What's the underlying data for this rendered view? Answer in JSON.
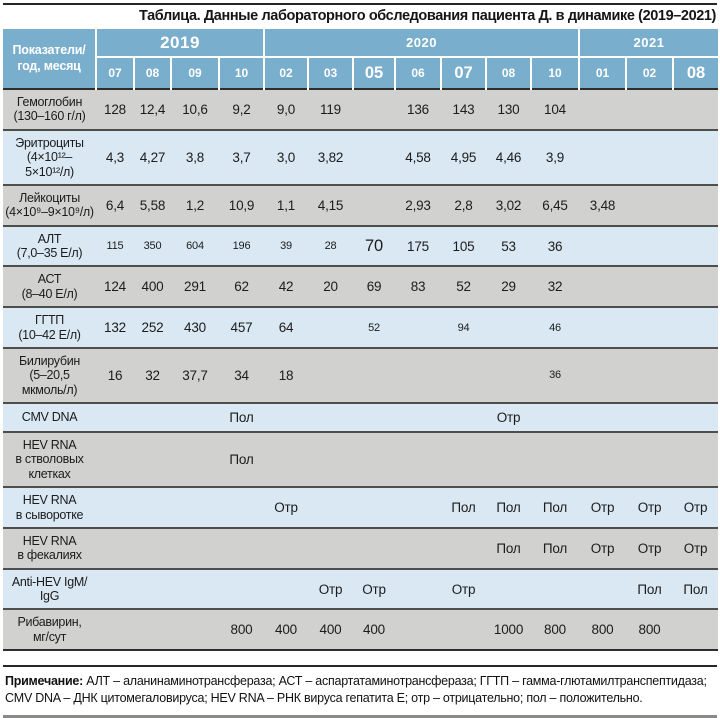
{
  "title": "Таблица. Данные лабораторного обследования пациента Д. в динамике (2019–2021)",
  "colors": {
    "header_blue": "#7aaecd",
    "row_gray": "#d1d1cf",
    "row_blue": "#d9e8f3",
    "header_text": "#ffffff",
    "body_text": "#1c1c1c"
  },
  "header": {
    "row_label": "Показатели/\nгод, месяц",
    "year_groups": [
      {
        "year": "2019",
        "emph": true,
        "months": [
          {
            "m": "07"
          },
          {
            "m": "08"
          },
          {
            "m": "09"
          },
          {
            "m": "10"
          }
        ]
      },
      {
        "year": "2020",
        "emph": false,
        "months": [
          {
            "m": "02"
          },
          {
            "m": "03"
          },
          {
            "m": "05",
            "emph": true
          },
          {
            "m": "06"
          },
          {
            "m": "07",
            "emph": true
          },
          {
            "m": "08"
          },
          {
            "m": "10"
          }
        ]
      },
      {
        "year": "2021",
        "emph": false,
        "months": [
          {
            "m": "01"
          },
          {
            "m": "02"
          },
          {
            "m": "08",
            "emph": true
          }
        ]
      }
    ]
  },
  "rows": [
    {
      "label": "Гемоглобин\n(130–160 г/л)",
      "values": [
        "128",
        "12,4",
        "10,6",
        "9,2",
        "9,0",
        "119",
        "",
        "136",
        "143",
        "130",
        "104",
        "",
        "",
        ""
      ]
    },
    {
      "label": "Эритроциты\n(4×10¹²–\n5×10¹²/л)",
      "values": [
        "4,3",
        "4,27",
        "3,8",
        "3,7",
        "3,0",
        "3,82",
        "",
        "4,58",
        "4,95",
        "4,46",
        "3,9",
        "",
        "",
        ""
      ]
    },
    {
      "label": "Лейкоциты\n(4×10⁹–9×10⁹/л)",
      "values": [
        "6,4",
        "5,58",
        "1,2",
        "10,9",
        "1,1",
        "4,15",
        "",
        "2,93",
        "2,8",
        "3,02",
        "6,45",
        "3,48",
        "",
        ""
      ]
    },
    {
      "label": "АЛТ\n(7,0–35 Е/л)",
      "values": [
        {
          "v": "115",
          "size": "sm"
        },
        {
          "v": "350",
          "size": "sm"
        },
        {
          "v": "604",
          "size": "sm"
        },
        {
          "v": "196",
          "size": "sm"
        },
        {
          "v": "39",
          "size": "sm"
        },
        {
          "v": "28",
          "size": "sm"
        },
        {
          "v": "70",
          "size": "lg"
        },
        "175",
        "105",
        "53",
        "36",
        "",
        "",
        ""
      ]
    },
    {
      "label": "АСТ\n(8–40 Е/л)",
      "values": [
        "124",
        "400",
        "291",
        "62",
        "42",
        "20",
        "69",
        "83",
        "52",
        "29",
        "32",
        "",
        "",
        ""
      ]
    },
    {
      "label": "ГГТП\n(10–42 Е/л)",
      "values": [
        "132",
        "252",
        "430",
        "457",
        "64",
        "",
        {
          "v": "52",
          "size": "sm"
        },
        "",
        {
          "v": "94",
          "size": "sm"
        },
        "",
        {
          "v": "46",
          "size": "sm"
        },
        "",
        "",
        ""
      ]
    },
    {
      "label": "Билирубин\n(5–20,5\nмкмоль/л)",
      "values": [
        "16",
        "32",
        "37,7",
        "34",
        "18",
        "",
        "",
        "",
        "",
        "",
        {
          "v": "36",
          "size": "sm"
        },
        "",
        "",
        ""
      ]
    },
    {
      "label": "CMV DNA",
      "values": [
        "",
        "",
        "",
        "Пол",
        "",
        "",
        "",
        "",
        "",
        "Отр",
        "",
        "",
        "",
        ""
      ]
    },
    {
      "label": "HEV RNA\nв стволовых\nклетках",
      "values": [
        "",
        "",
        "",
        "Пол",
        "",
        "",
        "",
        "",
        "",
        "",
        "",
        "",
        "",
        ""
      ]
    },
    {
      "label": "HEV RNA\nв сыворотке",
      "values": [
        "",
        "",
        "",
        "",
        "Отр",
        "",
        "",
        "",
        "Пол",
        "Пол",
        "Пол",
        "Отр",
        "Отр",
        "Отр"
      ]
    },
    {
      "label": "HEV RNA\nв фекалиях",
      "values": [
        "",
        "",
        "",
        "",
        "",
        "",
        "",
        "",
        "",
        "Пол",
        "Пол",
        "Отр",
        "Отр",
        "Отр"
      ]
    },
    {
      "label": "Anti-HEV IgM/\nIgG",
      "values": [
        "",
        "",
        "",
        "",
        "",
        "Отр",
        "Отр",
        "",
        "Отр",
        "",
        "",
        "",
        "Пол",
        "Пол"
      ]
    },
    {
      "label": "Рибавирин,\nмг/сут",
      "values": [
        "",
        "",
        "",
        "800",
        "400",
        "400",
        "400",
        "",
        "",
        "1000",
        "800",
        "800",
        "800",
        ""
      ]
    }
  ],
  "footnote": {
    "lead": "Примечание: ",
    "text": "АЛТ – аланинаминотрансфераза; АСТ – аспартатаминотрансфераза; ГГТП – гамма-глютамилтранспептидаза; CMV DNA – ДНК цитомегаловируса; HEV RNA – РНК вируса гепатита Е; отр – отрицательно; пол – положительно."
  }
}
